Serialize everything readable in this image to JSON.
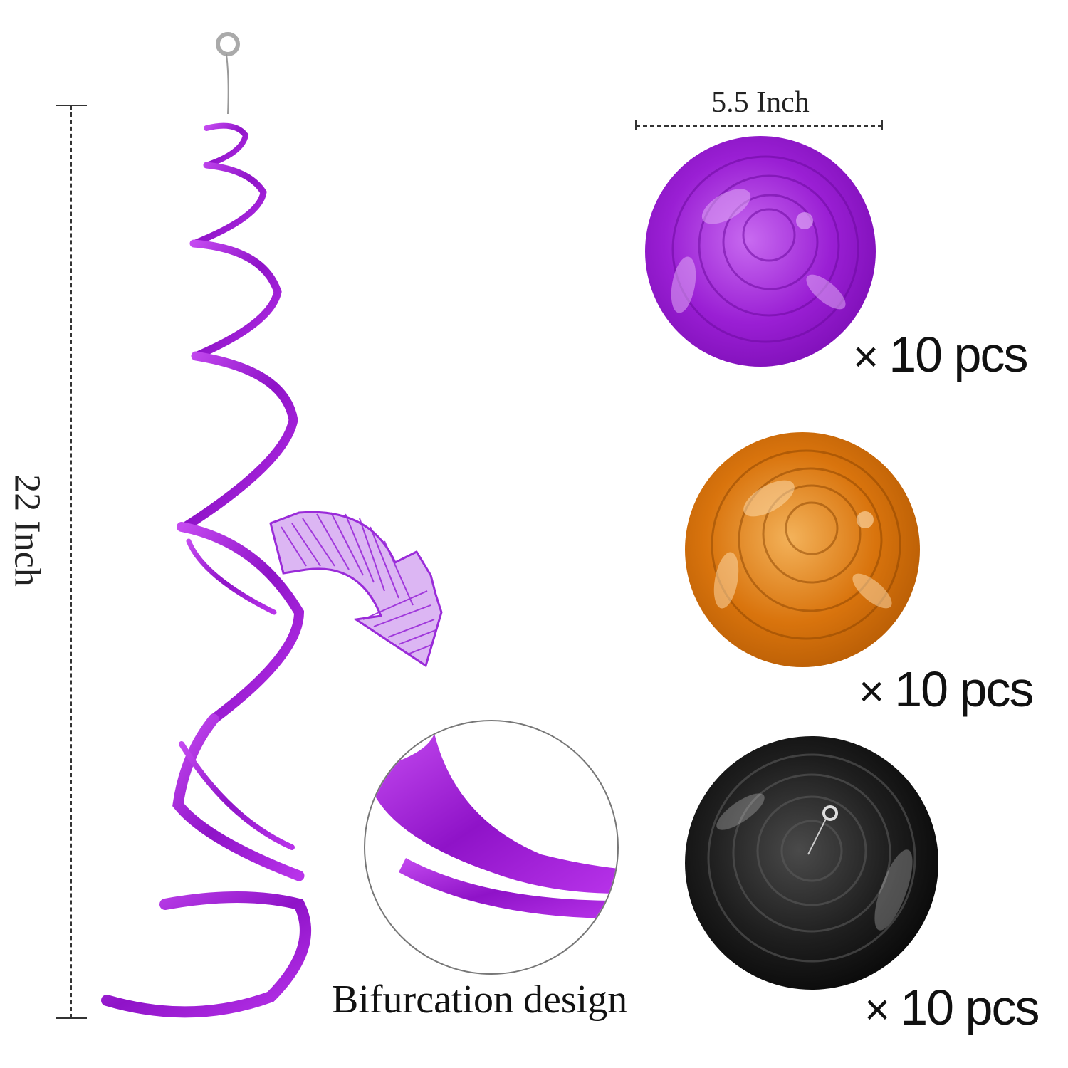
{
  "dimensions": {
    "height_label": "22 Inch",
    "width_label": "5.5 Inch"
  },
  "quantities": [
    {
      "label": "10 pcs",
      "multiplier": "×",
      "color": "purple"
    },
    {
      "label": "10 pcs",
      "multiplier": "×",
      "color": "orange"
    },
    {
      "label": "10 pcs",
      "multiplier": "×",
      "color": "black"
    }
  ],
  "caption": "Bifurcation design",
  "colors": {
    "purple": "#a21fd6",
    "orange": "#e07a10",
    "black": "#1a1a1a",
    "arrow": "#9a2bd9"
  },
  "icons": [
    "hanging-hook-icon",
    "curved-arrow-icon",
    "zoom-circle"
  ]
}
